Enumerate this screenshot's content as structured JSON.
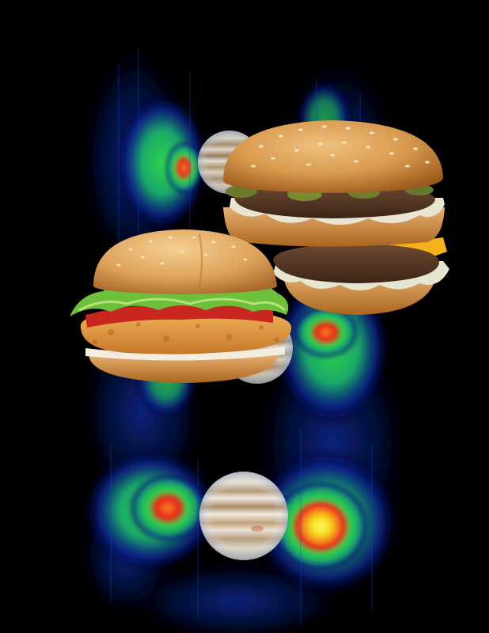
{
  "scene": {
    "background_color": "#000000",
    "palette": {
      "glow_outer": "#0a1f8a",
      "glow_mid": "#1aa86a",
      "glow_green": "#2fd24a",
      "glow_yellow": "#f4e21c",
      "glow_orange": "#f5841c",
      "glow_red": "#e8201c",
      "planet_band_light": "#e8e0d2",
      "planet_band_dark": "#b39b7a",
      "bun": "#d99a4e",
      "bun_dark": "#b06a24",
      "lettuce": "#6cc03a",
      "tomato": "#c8261e",
      "patty": "#5a3a26",
      "cheese": "#f6b21a",
      "chicken": "#e39a3a"
    },
    "objects": [
      "radio-emission-heatmap",
      "jupiter-planet",
      "big-double-burger",
      "crispy-chicken-sandwich"
    ]
  }
}
